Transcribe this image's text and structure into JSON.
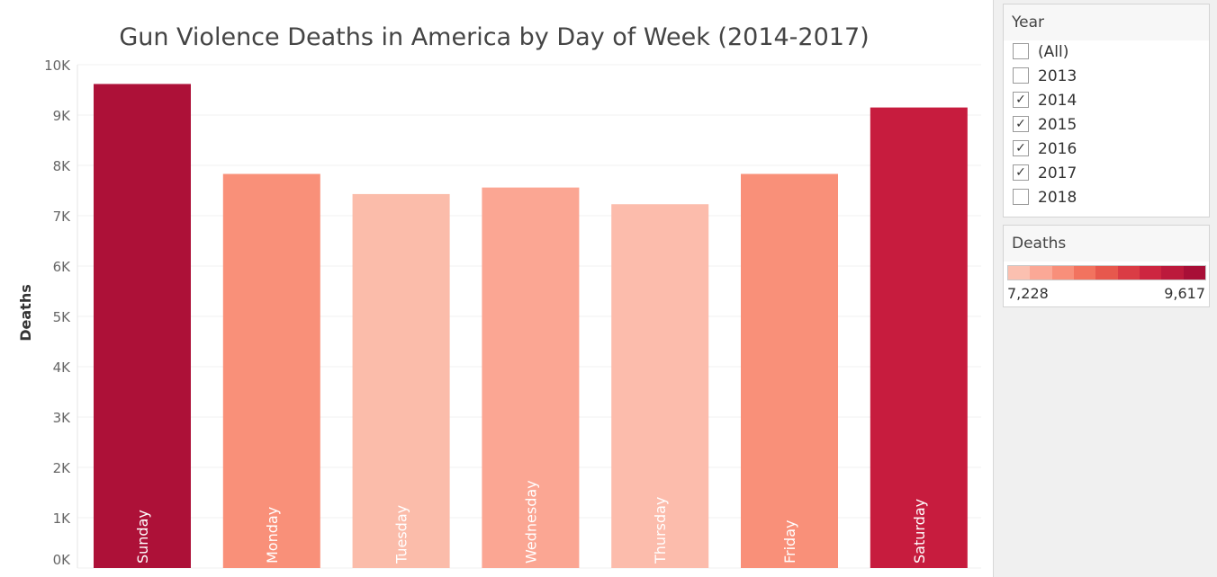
{
  "chart_data": {
    "type": "bar",
    "title": "Gun Violence Deaths in America by Day of Week (2014-2017)",
    "ylabel": "Deaths",
    "ylim": [
      0,
      10000
    ],
    "yticks": [
      "0K",
      "1K",
      "2K",
      "3K",
      "4K",
      "5K",
      "6K",
      "7K",
      "8K",
      "9K",
      "10K"
    ],
    "categories": [
      "Sunday",
      "Monday",
      "Tuesday",
      "Wednesday",
      "Thursday",
      "Friday",
      "Saturday"
    ],
    "values": [
      9617,
      7830,
      7430,
      7560,
      7228,
      7830,
      9150
    ],
    "colors": [
      "#ad1138",
      "#f99079",
      "#fbbcaa",
      "#fba693",
      "#fcbcac",
      "#f99079",
      "#c71c3e"
    ],
    "grid": true,
    "legend": "none"
  },
  "year_filter": {
    "title": "Year",
    "items": [
      {
        "label": "(All)",
        "checked": false
      },
      {
        "label": "2013",
        "checked": false
      },
      {
        "label": "2014",
        "checked": true
      },
      {
        "label": "2015",
        "checked": true
      },
      {
        "label": "2016",
        "checked": true
      },
      {
        "label": "2017",
        "checked": true
      },
      {
        "label": "2018",
        "checked": false
      }
    ]
  },
  "color_legend": {
    "title": "Deaths",
    "min_label": "7,228",
    "max_label": "9,617",
    "swatches": [
      "#fbc0b0",
      "#fba896",
      "#f88f7a",
      "#f2735f",
      "#e7584d",
      "#da3c45",
      "#cd2640",
      "#bc1a3c",
      "#a80f37"
    ]
  }
}
